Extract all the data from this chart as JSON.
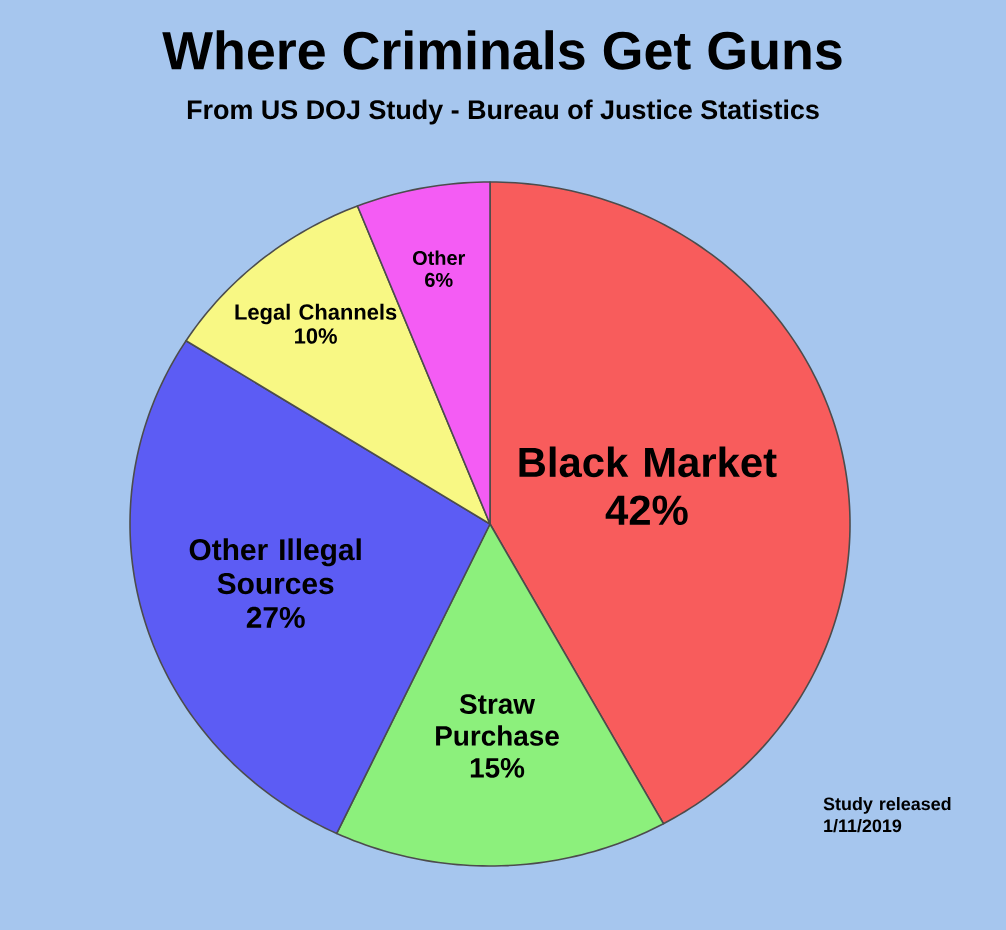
{
  "chart_data": {
    "type": "pie",
    "title": "Where Criminals Get Guns",
    "subtitle": "From US DOJ Study - Bureau of Justice Statistics",
    "categories": [
      "Black Market",
      "Straw Purchase",
      "Other Illegal Sources",
      "Legal Channels",
      "Other"
    ],
    "values": [
      42,
      15,
      27,
      10,
      6
    ],
    "colors": [
      "#f85c5c",
      "#8cf07c",
      "#5c5cf4",
      "#f8f884",
      "#f45cf4"
    ],
    "value_labels": [
      "42%",
      "15%",
      "27%",
      "10%",
      "6%"
    ],
    "annotations": [
      "Study released 1/11/2019"
    ]
  }
}
